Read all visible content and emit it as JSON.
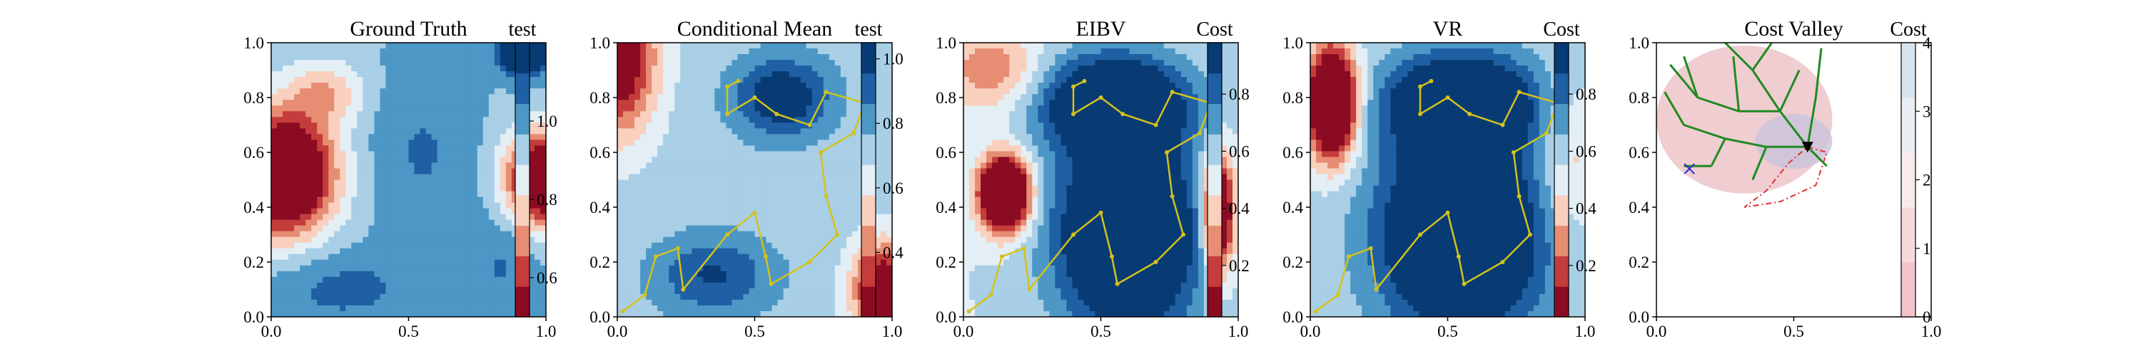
{
  "chart_data": [
    {
      "type": "heatmap",
      "title": "Ground Truth",
      "colorbar_label": "test",
      "xlim": [
        0,
        1
      ],
      "ylim": [
        0,
        1
      ],
      "x_ticks": [
        "0.0",
        "0.5",
        "1.0"
      ],
      "y_ticks": [
        "0.0",
        "0.2",
        "0.4",
        "0.6",
        "0.8",
        "1.0"
      ],
      "colorbar_range": [
        0.5,
        1.2
      ],
      "colorbar_ticks": [
        "0.6",
        "0.8",
        "1.0"
      ],
      "colorbar_tick_values": [
        0.6,
        0.8,
        1.0
      ],
      "blobs": [
        {
          "x": 0.04,
          "y": 0.52,
          "sx": 0.13,
          "sy": 0.15,
          "a": -0.75
        },
        {
          "x": 1.0,
          "y": 0.5,
          "sx": 0.1,
          "sy": 0.12,
          "a": -0.65
        },
        {
          "x": 0.2,
          "y": 0.82,
          "sx": 0.1,
          "sy": 0.08,
          "a": -0.2
        },
        {
          "x": 0.92,
          "y": 0.97,
          "sx": 0.06,
          "sy": 0.06,
          "a": 0.5
        },
        {
          "x": 0.55,
          "y": 0.6,
          "sx": 0.15,
          "sy": 0.25,
          "a": 0.1
        },
        {
          "x": 0.25,
          "y": 0.1,
          "sx": 0.2,
          "sy": 0.1,
          "a": 0.12
        },
        {
          "x": 0.85,
          "y": 0.2,
          "sx": 0.1,
          "sy": 0.15,
          "a": 0.1
        }
      ],
      "base": 0.95
    },
    {
      "type": "heatmap",
      "title": "Conditional Mean",
      "colorbar_label": "test",
      "xlim": [
        0,
        1
      ],
      "ylim": [
        0,
        1
      ],
      "x_ticks": [
        "0.0",
        "0.5",
        "1.0"
      ],
      "y_ticks": [
        "0.0",
        "0.2",
        "0.4",
        "0.6",
        "0.8",
        "1.0"
      ],
      "colorbar_range": [
        0.2,
        1.05
      ],
      "colorbar_ticks": [
        "0.4",
        "0.6",
        "0.8",
        "1.0"
      ],
      "colorbar_tick_values": [
        0.4,
        0.6,
        0.8,
        1.0
      ],
      "blobs": [
        {
          "x": 0.0,
          "y": 0.95,
          "sx": 0.1,
          "sy": 0.2,
          "a": -0.6
        },
        {
          "x": 0.97,
          "y": 0.1,
          "sx": 0.08,
          "sy": 0.12,
          "a": -0.6
        },
        {
          "x": 0.6,
          "y": 0.8,
          "sx": 0.12,
          "sy": 0.1,
          "a": 0.35
        },
        {
          "x": 0.35,
          "y": 0.15,
          "sx": 0.15,
          "sy": 0.1,
          "a": 0.25
        }
      ],
      "base": 0.72,
      "path": [
        [
          0.02,
          0.02
        ],
        [
          0.1,
          0.08
        ],
        [
          0.14,
          0.22
        ],
        [
          0.22,
          0.25
        ],
        [
          0.24,
          0.1
        ],
        [
          0.4,
          0.3
        ],
        [
          0.5,
          0.38
        ],
        [
          0.54,
          0.22
        ],
        [
          0.56,
          0.12
        ],
        [
          0.7,
          0.2
        ],
        [
          0.8,
          0.3
        ],
        [
          0.76,
          0.44
        ],
        [
          0.74,
          0.6
        ],
        [
          0.86,
          0.67
        ],
        [
          0.9,
          0.78
        ],
        [
          0.76,
          0.82
        ],
        [
          0.7,
          0.7
        ],
        [
          0.58,
          0.74
        ],
        [
          0.5,
          0.8
        ],
        [
          0.4,
          0.74
        ],
        [
          0.4,
          0.84
        ],
        [
          0.44,
          0.86
        ]
      ]
    },
    {
      "type": "heatmap",
      "title": "EIBV",
      "colorbar_label": "Cost",
      "xlim": [
        0,
        1
      ],
      "ylim": [
        0,
        1
      ],
      "x_ticks": [
        "0.0",
        "0.5",
        "1.0"
      ],
      "y_ticks": [
        "0.0",
        "0.2",
        "0.4",
        "0.6",
        "0.8",
        "1.0"
      ],
      "colorbar_range": [
        0.02,
        0.98
      ],
      "colorbar_ticks": [
        "0.2",
        "0.4",
        "0.6",
        "0.8"
      ],
      "colorbar_tick_values": [
        0.2,
        0.4,
        0.6,
        0.8
      ],
      "blobs": [
        {
          "x": 0.15,
          "y": 0.45,
          "sx": 0.06,
          "sy": 0.09,
          "a": -1.25
        },
        {
          "x": 0.93,
          "y": 0.38,
          "sx": 0.04,
          "sy": 0.15,
          "a": -0.85
        },
        {
          "x": 0.6,
          "y": 0.3,
          "sx": 0.18,
          "sy": 0.25,
          "a": 0.8
        },
        {
          "x": 0.55,
          "y": 0.78,
          "sx": 0.18,
          "sy": 0.12,
          "a": 0.7
        },
        {
          "x": 0.1,
          "y": 0.9,
          "sx": 0.12,
          "sy": 0.1,
          "a": -0.3
        }
      ],
      "base": 0.55,
      "path": [
        [
          0.02,
          0.02
        ],
        [
          0.1,
          0.08
        ],
        [
          0.14,
          0.22
        ],
        [
          0.22,
          0.25
        ],
        [
          0.24,
          0.1
        ],
        [
          0.4,
          0.3
        ],
        [
          0.5,
          0.38
        ],
        [
          0.54,
          0.22
        ],
        [
          0.56,
          0.12
        ],
        [
          0.7,
          0.2
        ],
        [
          0.8,
          0.3
        ],
        [
          0.76,
          0.44
        ],
        [
          0.74,
          0.6
        ],
        [
          0.86,
          0.67
        ],
        [
          0.9,
          0.78
        ],
        [
          0.76,
          0.82
        ],
        [
          0.7,
          0.7
        ],
        [
          0.58,
          0.74
        ],
        [
          0.5,
          0.8
        ],
        [
          0.4,
          0.74
        ],
        [
          0.4,
          0.84
        ],
        [
          0.44,
          0.86
        ]
      ]
    },
    {
      "type": "heatmap",
      "title": "VR",
      "colorbar_label": "Cost",
      "xlim": [
        0,
        1
      ],
      "ylim": [
        0,
        1
      ],
      "x_ticks": [
        "0.0",
        "0.5",
        "1.0"
      ],
      "y_ticks": [
        "0.0",
        "0.2",
        "0.4",
        "0.6",
        "0.8",
        "1.0"
      ],
      "colorbar_range": [
        0.02,
        0.98
      ],
      "colorbar_ticks": [
        "0.2",
        "0.4",
        "0.6",
        "0.8"
      ],
      "colorbar_tick_values": [
        0.2,
        0.4,
        0.6,
        0.8
      ],
      "blobs": [
        {
          "x": 0.08,
          "y": 0.78,
          "sx": 0.06,
          "sy": 0.14,
          "a": -1.1
        },
        {
          "x": 0.95,
          "y": 0.55,
          "sx": 0.08,
          "sy": 0.2,
          "a": -0.2
        },
        {
          "x": 0.55,
          "y": 0.3,
          "sx": 0.2,
          "sy": 0.25,
          "a": 0.8
        },
        {
          "x": 0.55,
          "y": 0.78,
          "sx": 0.18,
          "sy": 0.12,
          "a": 0.7
        }
      ],
      "base": 0.58,
      "path": [
        [
          0.02,
          0.02
        ],
        [
          0.1,
          0.08
        ],
        [
          0.14,
          0.22
        ],
        [
          0.22,
          0.25
        ],
        [
          0.24,
          0.1
        ],
        [
          0.4,
          0.3
        ],
        [
          0.5,
          0.38
        ],
        [
          0.54,
          0.22
        ],
        [
          0.56,
          0.12
        ],
        [
          0.7,
          0.2
        ],
        [
          0.8,
          0.3
        ],
        [
          0.76,
          0.44
        ],
        [
          0.74,
          0.6
        ],
        [
          0.86,
          0.67
        ],
        [
          0.9,
          0.78
        ],
        [
          0.76,
          0.82
        ],
        [
          0.7,
          0.7
        ],
        [
          0.58,
          0.74
        ],
        [
          0.5,
          0.8
        ],
        [
          0.4,
          0.74
        ],
        [
          0.4,
          0.84
        ],
        [
          0.44,
          0.86
        ]
      ]
    },
    {
      "type": "heatmap",
      "title": "Cost Valley",
      "colorbar_label": "Cost",
      "xlim": [
        0,
        1
      ],
      "ylim": [
        0,
        1
      ],
      "x_ticks": [
        "0.0",
        "0.5",
        "1.0"
      ],
      "y_ticks": [
        "0.0",
        "0.2",
        "0.4",
        "0.6",
        "0.8",
        "1.0"
      ],
      "colorbar_range": [
        0,
        4
      ],
      "colorbar_ticks": [
        "0",
        "1",
        "2",
        "3",
        "4"
      ],
      "colorbar_tick_values": [
        0,
        1,
        2,
        3,
        4
      ],
      "tree_root": [
        0.55,
        0.62
      ],
      "tree_lines": [
        [
          [
            0.55,
            0.62
          ],
          [
            0.45,
            0.75
          ]
        ],
        [
          [
            0.45,
            0.75
          ],
          [
            0.35,
            0.9
          ]
        ],
        [
          [
            0.35,
            0.9
          ],
          [
            0.25,
            1.0
          ]
        ],
        [
          [
            0.45,
            0.75
          ],
          [
            0.3,
            0.75
          ]
        ],
        [
          [
            0.3,
            0.75
          ],
          [
            0.15,
            0.8
          ]
        ],
        [
          [
            0.15,
            0.8
          ],
          [
            0.05,
            0.92
          ]
        ],
        [
          [
            0.55,
            0.62
          ],
          [
            0.4,
            0.62
          ]
        ],
        [
          [
            0.4,
            0.62
          ],
          [
            0.25,
            0.65
          ]
        ],
        [
          [
            0.25,
            0.65
          ],
          [
            0.1,
            0.7
          ]
        ],
        [
          [
            0.55,
            0.62
          ],
          [
            0.58,
            0.8
          ]
        ],
        [
          [
            0.58,
            0.8
          ],
          [
            0.6,
            0.98
          ]
        ],
        [
          [
            0.35,
            0.9
          ],
          [
            0.42,
            1.0
          ]
        ],
        [
          [
            0.3,
            0.75
          ],
          [
            0.28,
            0.95
          ]
        ],
        [
          [
            0.25,
            0.65
          ],
          [
            0.2,
            0.55
          ]
        ],
        [
          [
            0.4,
            0.62
          ],
          [
            0.35,
            0.5
          ]
        ],
        [
          [
            0.55,
            0.62
          ],
          [
            0.62,
            0.55
          ]
        ],
        [
          [
            0.15,
            0.8
          ],
          [
            0.1,
            0.95
          ]
        ],
        [
          [
            0.1,
            0.7
          ],
          [
            0.03,
            0.82
          ]
        ],
        [
          [
            0.45,
            0.75
          ],
          [
            0.52,
            0.9
          ]
        ],
        [
          [
            0.2,
            0.55
          ],
          [
            0.1,
            0.55
          ]
        ]
      ],
      "red_polygon": [
        [
          0.55,
          0.62
        ],
        [
          0.62,
          0.6
        ],
        [
          0.58,
          0.48
        ],
        [
          0.45,
          0.42
        ],
        [
          0.32,
          0.4
        ],
        [
          0.4,
          0.46
        ],
        [
          0.48,
          0.56
        ]
      ],
      "blue_x": [
        0.12,
        0.54
      ]
    }
  ]
}
